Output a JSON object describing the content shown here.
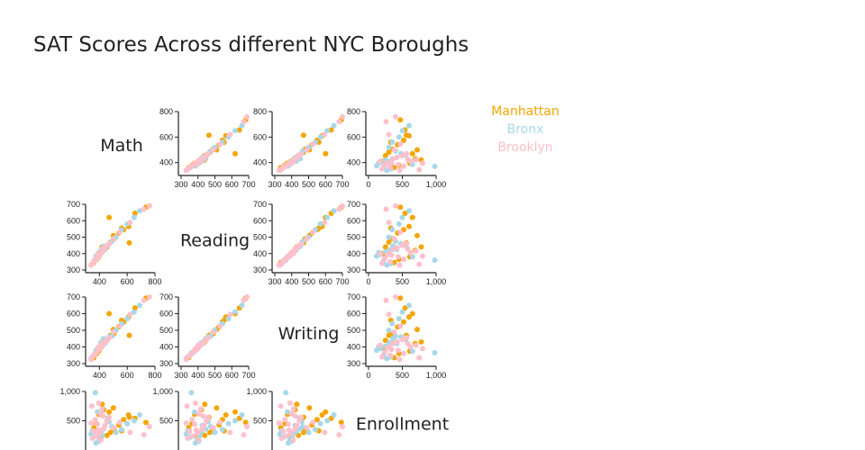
{
  "title": "SAT Scores Across different NYC Boroughs",
  "colors": {
    "Manhattan": "#f5a500",
    "Bronx": "#a8d8e8",
    "Brooklyn": "#ffc0cb"
  },
  "legend": [
    "Manhattan",
    "Bronx",
    "Brooklyn"
  ],
  "chart_data": {
    "type": "scatter",
    "title": "SAT Scores Across different NYC Boroughs",
    "variables": [
      "Math",
      "Reading",
      "Writing",
      "Enrollment"
    ],
    "legend_position": "top-right",
    "grid": false,
    "axes": {
      "Math": {
        "range_as_x": [
          300,
          700
        ],
        "ticks_as_x": [
          "300",
          "400",
          "500",
          "600",
          "700"
        ],
        "range_as_y": [
          300,
          800
        ],
        "ticks_as_y": [
          "400",
          "600",
          "800"
        ],
        "label_ticks_as_y": [
          400,
          600,
          800
        ]
      },
      "Reading": {
        "range_as_x": [
          300,
          700
        ],
        "ticks_as_x": [
          "300",
          "400",
          "500",
          "600",
          "700"
        ],
        "range_as_x_col0": [
          320,
          800
        ],
        "ticks_as_x_col0": [
          "400",
          "600",
          "800"
        ],
        "range_as_y": [
          300,
          700
        ],
        "ticks_as_y": [
          "300",
          "400",
          "500",
          "600",
          "700"
        ]
      },
      "Writing": {
        "range_as_y": [
          300,
          700
        ],
        "ticks_as_y": [
          "300",
          "400",
          "500",
          "600",
          "700"
        ]
      },
      "Enrollment": {
        "range_as_x": [
          0,
          1000
        ],
        "ticks_as_x": [
          "0",
          "500",
          "1,000"
        ],
        "range_as_y": [
          0,
          1000
        ],
        "ticks_as_y": [
          "500",
          "1,000"
        ]
      }
    },
    "series": [
      {
        "name": "Manhattan",
        "points": [
          {
            "math": 735,
            "reading": 682,
            "writing": 693,
            "enrollment": 470
          },
          {
            "math": 656,
            "reading": 645,
            "writing": 634,
            "enrollment": 540
          },
          {
            "math": 610,
            "reading": 565,
            "writing": 580,
            "enrollment": 600
          },
          {
            "math": 575,
            "reading": 545,
            "writing": 550,
            "enrollment": 520
          },
          {
            "math": 540,
            "reading": 525,
            "writing": 520,
            "enrollment": 430
          },
          {
            "math": 505,
            "reading": 490,
            "writing": 480,
            "enrollment": 360
          },
          {
            "math": 480,
            "reading": 470,
            "writing": 470,
            "enrollment": 300
          },
          {
            "math": 455,
            "reading": 440,
            "writing": 440,
            "enrollment": 250
          },
          {
            "math": 430,
            "reading": 420,
            "writing": 420,
            "enrollment": 690
          },
          {
            "math": 410,
            "reading": 400,
            "writing": 395,
            "enrollment": 200
          },
          {
            "math": 395,
            "reading": 380,
            "writing": 375,
            "enrollment": 610
          },
          {
            "math": 380,
            "reading": 365,
            "writing": 360,
            "enrollment": 450
          },
          {
            "math": 360,
            "reading": 345,
            "writing": 335,
            "enrollment": 380
          },
          {
            "math": 615,
            "reading": 465,
            "writing": 470,
            "enrollment": 560
          },
          {
            "math": 470,
            "reading": 620,
            "writing": 600,
            "enrollment": 650
          },
          {
            "math": 420,
            "reading": 440,
            "writing": 430,
            "enrollment": 780
          },
          {
            "math": 500,
            "reading": 510,
            "writing": 505,
            "enrollment": 720
          },
          {
            "math": 560,
            "reading": 555,
            "writing": 560,
            "enrollment": 330
          },
          {
            "math": 390,
            "reading": 395,
            "writing": 390,
            "enrollment": 240
          }
        ]
      },
      {
        "name": "Bronx",
        "points": [
          {
            "math": 690,
            "reading": 660,
            "writing": 650,
            "enrollment": 600
          },
          {
            "math": 650,
            "reading": 620,
            "writing": 610,
            "enrollment": 500
          },
          {
            "math": 600,
            "reading": 580,
            "writing": 570,
            "enrollment": 450
          },
          {
            "math": 560,
            "reading": 545,
            "writing": 540,
            "enrollment": 350
          },
          {
            "math": 520,
            "reading": 500,
            "writing": 500,
            "enrollment": 300
          },
          {
            "math": 490,
            "reading": 475,
            "writing": 465,
            "enrollment": 400
          },
          {
            "math": 460,
            "reading": 450,
            "writing": 445,
            "enrollment": 550
          },
          {
            "math": 440,
            "reading": 425,
            "writing": 420,
            "enrollment": 420
          },
          {
            "math": 420,
            "reading": 410,
            "writing": 405,
            "enrollment": 250
          },
          {
            "math": 400,
            "reading": 395,
            "writing": 390,
            "enrollment": 180
          },
          {
            "math": 385,
            "reading": 380,
            "writing": 375,
            "enrollment": 650
          },
          {
            "math": 370,
            "reading": 360,
            "writing": 365,
            "enrollment": 980
          },
          {
            "math": 360,
            "reading": 355,
            "writing": 350,
            "enrollment": 220
          },
          {
            "math": 350,
            "reading": 340,
            "writing": 340,
            "enrollment": 330
          },
          {
            "math": 340,
            "reading": 330,
            "writing": 330,
            "enrollment": 270
          },
          {
            "math": 410,
            "reading": 420,
            "writing": 425,
            "enrollment": 310
          },
          {
            "math": 430,
            "reading": 445,
            "writing": 450,
            "enrollment": 360
          },
          {
            "math": 470,
            "reading": 460,
            "writing": 460,
            "enrollment": 480
          },
          {
            "math": 395,
            "reading": 405,
            "writing": 400,
            "enrollment": 150
          },
          {
            "math": 375,
            "reading": 385,
            "writing": 380,
            "enrollment": 120
          }
        ]
      },
      {
        "name": "Brooklyn",
        "points": [
          {
            "math": 760,
            "reading": 690,
            "writing": 700,
            "enrollment": 400
          },
          {
            "math": 720,
            "reading": 670,
            "writing": 680,
            "enrollment": 260
          },
          {
            "math": 620,
            "reading": 590,
            "writing": 595,
            "enrollment": 300
          },
          {
            "math": 545,
            "reading": 530,
            "writing": 525,
            "enrollment": 470
          },
          {
            "math": 500,
            "reading": 490,
            "writing": 490,
            "enrollment": 380
          },
          {
            "math": 470,
            "reading": 460,
            "writing": 455,
            "enrollment": 560
          },
          {
            "math": 455,
            "reading": 450,
            "writing": 445,
            "enrollment": 500
          },
          {
            "math": 440,
            "reading": 435,
            "writing": 430,
            "enrollment": 420
          },
          {
            "math": 430,
            "reading": 425,
            "writing": 420,
            "enrollment": 360
          },
          {
            "math": 420,
            "reading": 415,
            "writing": 410,
            "enrollment": 700
          },
          {
            "math": 410,
            "reading": 405,
            "writing": 400,
            "enrollment": 620
          },
          {
            "math": 400,
            "reading": 395,
            "writing": 395,
            "enrollment": 280
          },
          {
            "math": 395,
            "reading": 390,
            "writing": 385,
            "enrollment": 340
          },
          {
            "math": 385,
            "reading": 380,
            "writing": 380,
            "enrollment": 440
          },
          {
            "math": 380,
            "reading": 370,
            "writing": 370,
            "enrollment": 240
          },
          {
            "math": 370,
            "reading": 365,
            "writing": 360,
            "enrollment": 520
          },
          {
            "math": 360,
            "reading": 350,
            "writing": 350,
            "enrollment": 320
          },
          {
            "math": 350,
            "reading": 340,
            "writing": 340,
            "enrollment": 200
          },
          {
            "math": 340,
            "reading": 330,
            "writing": 325,
            "enrollment": 460
          },
          {
            "math": 345,
            "reading": 335,
            "writing": 335,
            "enrollment": 750
          },
          {
            "math": 395,
            "reading": 385,
            "writing": 390,
            "enrollment": 800
          },
          {
            "math": 425,
            "reading": 430,
            "writing": 420,
            "enrollment": 580
          },
          {
            "math": 410,
            "reading": 400,
            "writing": 410,
            "enrollment": 170
          },
          {
            "math": 390,
            "reading": 400,
            "writing": 395,
            "enrollment": 310
          }
        ]
      }
    ]
  }
}
